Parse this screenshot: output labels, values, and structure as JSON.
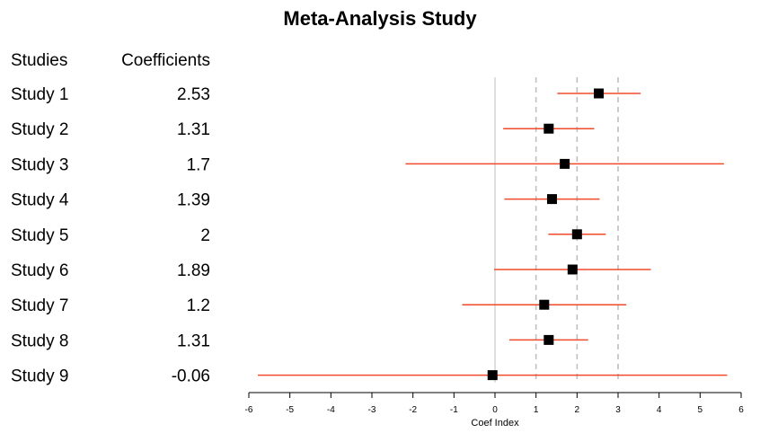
{
  "chart_data": {
    "type": "forest",
    "title": "Meta-Analysis Study",
    "xlabel": "Coef Index",
    "column_headers": {
      "studies": "Studies",
      "coefficients": "Coefficients"
    },
    "xlim": [
      -6,
      6
    ],
    "xticks": [
      -6,
      -5,
      -4,
      -3,
      -2,
      -1,
      0,
      1,
      2,
      3,
      4,
      5,
      6
    ],
    "reference_line": 0,
    "dashed_lines": [
      1,
      2,
      3
    ],
    "colors": {
      "ci": "#f04a2a",
      "point": "#000000",
      "reference": "#c8c8c8",
      "dashed": "#c0c0c0"
    },
    "studies": [
      {
        "name": "Study 1",
        "coef_label": "2.53",
        "estimate": 2.53,
        "lower": 1.52,
        "upper": 3.55
      },
      {
        "name": "Study 2",
        "coef_label": "1.31",
        "estimate": 1.31,
        "lower": 0.2,
        "upper": 2.42
      },
      {
        "name": "Study 3",
        "coef_label": "1.7",
        "estimate": 1.7,
        "lower": -2.18,
        "upper": 5.58
      },
      {
        "name": "Study 4",
        "coef_label": "1.39",
        "estimate": 1.39,
        "lower": 0.23,
        "upper": 2.55
      },
      {
        "name": "Study 5",
        "coef_label": "2",
        "estimate": 2.0,
        "lower": 1.3,
        "upper": 2.7
      },
      {
        "name": "Study 6",
        "coef_label": "1.89",
        "estimate": 1.89,
        "lower": -0.02,
        "upper": 3.8
      },
      {
        "name": "Study 7",
        "coef_label": "1.2",
        "estimate": 1.2,
        "lower": -0.8,
        "upper": 3.2
      },
      {
        "name": "Study 8",
        "coef_label": "1.31",
        "estimate": 1.31,
        "lower": 0.35,
        "upper": 2.27
      },
      {
        "name": "Study 9",
        "coef_label": "-0.06",
        "estimate": -0.06,
        "lower": -5.78,
        "upper": 5.66
      }
    ]
  }
}
